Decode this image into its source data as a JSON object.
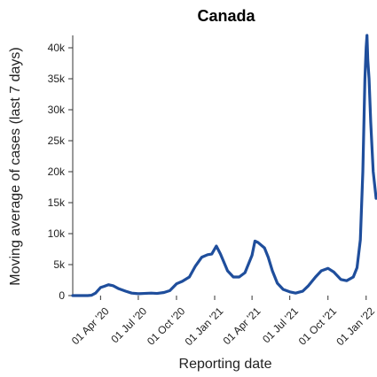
{
  "chart_data": {
    "type": "line",
    "title": "Canada",
    "xlabel": "Reporting date",
    "ylabel": "Moving average of cases (last 7 days)",
    "x_ticks": [
      "01 Apr '20",
      "01 Jul '20",
      "01 Oct '20",
      "01 Jan '21",
      "01 Apr '21",
      "01 Jul '21",
      "01 Oct '21",
      "01 Jan '22"
    ],
    "y_ticks": [
      "0",
      "5k",
      "10k",
      "15k",
      "20k",
      "25k",
      "30k",
      "35k",
      "40k"
    ],
    "x_range": [
      "2020-01-25",
      "2022-01-25"
    ],
    "ylim": [
      0,
      42000
    ],
    "grid": false,
    "legend": "none",
    "series": [
      {
        "color": "#1f4e9c",
        "points": [
          [
            "2020-01-25",
            0
          ],
          [
            "2020-03-01",
            0
          ],
          [
            "2020-03-10",
            50
          ],
          [
            "2020-03-20",
            400
          ],
          [
            "2020-04-01",
            1300
          ],
          [
            "2020-04-10",
            1500
          ],
          [
            "2020-04-20",
            1750
          ],
          [
            "2020-05-01",
            1600
          ],
          [
            "2020-05-15",
            1100
          ],
          [
            "2020-06-01",
            700
          ],
          [
            "2020-06-15",
            400
          ],
          [
            "2020-07-01",
            300
          ],
          [
            "2020-07-15",
            350
          ],
          [
            "2020-08-01",
            400
          ],
          [
            "2020-08-15",
            350
          ],
          [
            "2020-09-01",
            500
          ],
          [
            "2020-09-15",
            800
          ],
          [
            "2020-10-01",
            1900
          ],
          [
            "2020-10-15",
            2300
          ],
          [
            "2020-11-01",
            3000
          ],
          [
            "2020-11-15",
            4700
          ],
          [
            "2020-12-01",
            6200
          ],
          [
            "2020-12-15",
            6600
          ],
          [
            "2020-12-25",
            6700
          ],
          [
            "2021-01-05",
            8000
          ],
          [
            "2021-01-15",
            6700
          ],
          [
            "2021-02-01",
            4000
          ],
          [
            "2021-02-15",
            3000
          ],
          [
            "2021-03-01",
            3000
          ],
          [
            "2021-03-15",
            3700
          ],
          [
            "2021-04-01",
            6500
          ],
          [
            "2021-04-08",
            8800
          ],
          [
            "2021-04-15",
            8600
          ],
          [
            "2021-05-01",
            7700
          ],
          [
            "2021-05-10",
            6200
          ],
          [
            "2021-05-20",
            4000
          ],
          [
            "2021-06-01",
            2000
          ],
          [
            "2021-06-15",
            1000
          ],
          [
            "2021-07-01",
            600
          ],
          [
            "2021-07-15",
            400
          ],
          [
            "2021-08-01",
            700
          ],
          [
            "2021-08-15",
            1600
          ],
          [
            "2021-09-01",
            3000
          ],
          [
            "2021-09-15",
            4000
          ],
          [
            "2021-10-01",
            4400
          ],
          [
            "2021-10-15",
            3800
          ],
          [
            "2021-11-01",
            2600
          ],
          [
            "2021-11-15",
            2400
          ],
          [
            "2021-12-01",
            3000
          ],
          [
            "2021-12-10",
            4500
          ],
          [
            "2021-12-18",
            9000
          ],
          [
            "2021-12-24",
            20000
          ],
          [
            "2021-12-29",
            35000
          ],
          [
            "2022-01-01",
            40000
          ],
          [
            "2022-01-03",
            42000
          ],
          [
            "2022-01-05",
            38000
          ],
          [
            "2022-01-08",
            35000
          ],
          [
            "2022-01-12",
            28000
          ],
          [
            "2022-01-18",
            20000
          ],
          [
            "2022-01-25",
            15700
          ]
        ]
      }
    ]
  }
}
